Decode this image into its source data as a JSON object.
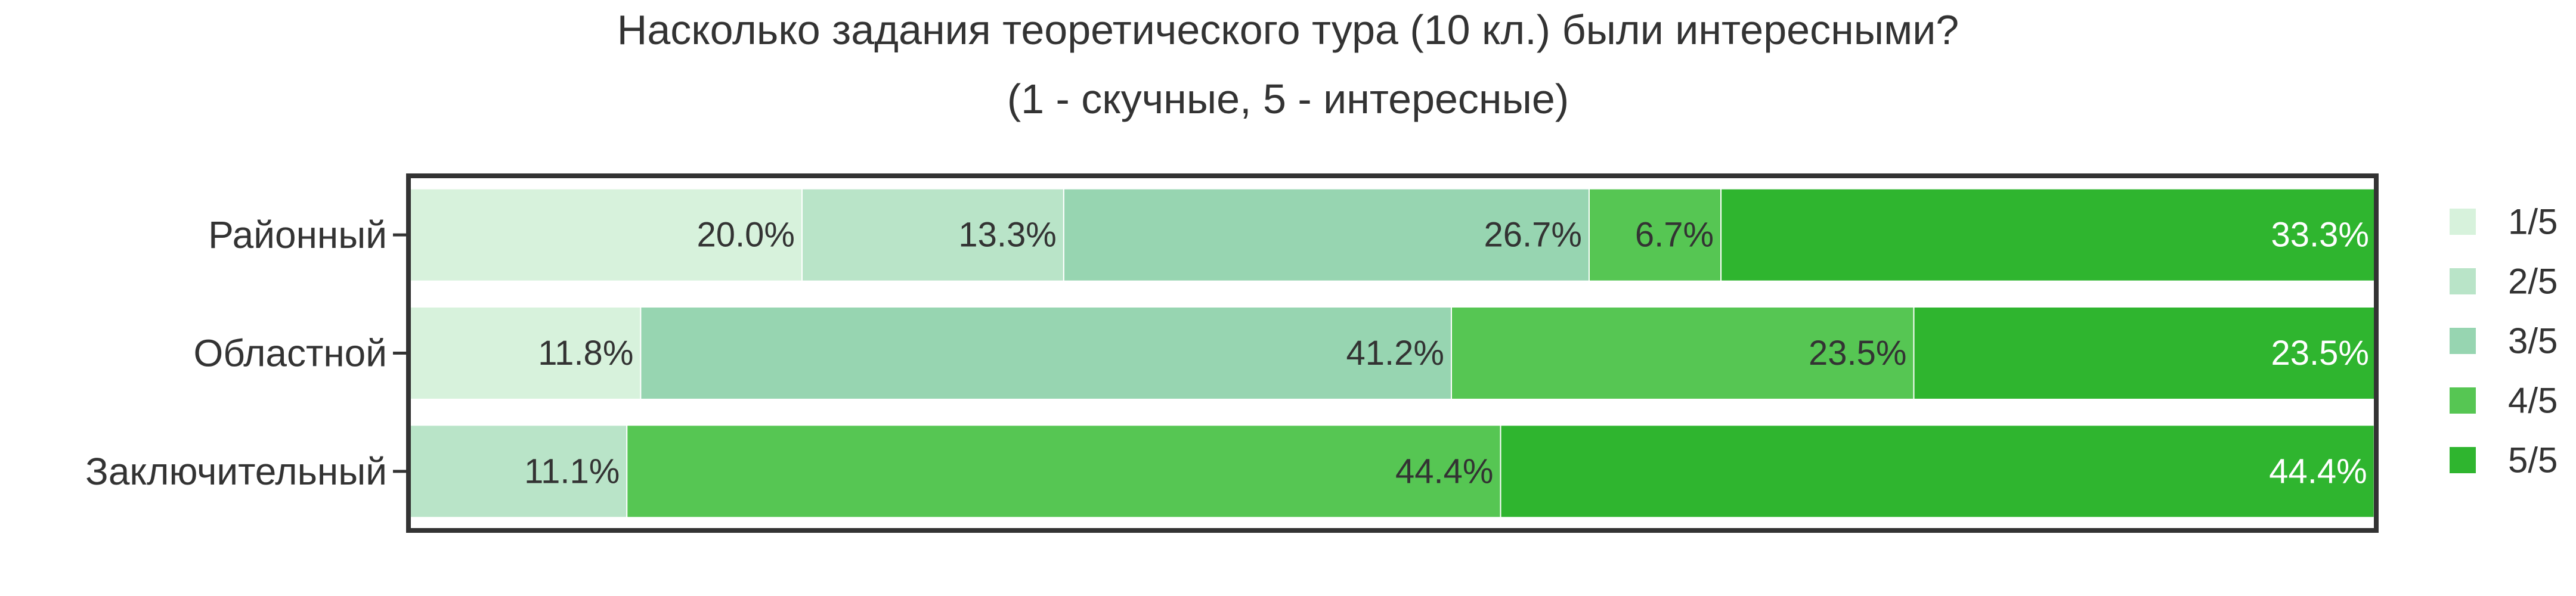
{
  "chart_data": {
    "type": "bar",
    "orientation": "horizontal",
    "stacked": true,
    "normalized": true,
    "title": "Насколько задания теоретического тура (10 кл.) были интересными?",
    "subtitle": "(1 - скучные, 5 - интересные)",
    "categories": [
      "Районный",
      "Областной",
      "Заключительный"
    ],
    "series": [
      {
        "name": "1/5",
        "color": "#d7f2dc",
        "values": [
          20.0,
          11.8,
          0.0
        ]
      },
      {
        "name": "2/5",
        "color": "#b9e4c8",
        "values": [
          13.3,
          0.0,
          11.1
        ]
      },
      {
        "name": "3/5",
        "color": "#97d5b1",
        "values": [
          26.7,
          41.2,
          0.0
        ]
      },
      {
        "name": "4/5",
        "color": "#56c653",
        "values": [
          6.7,
          23.5,
          44.4
        ]
      },
      {
        "name": "5/5",
        "color": "#2fb52f",
        "values": [
          33.3,
          23.5,
          44.4
        ]
      }
    ],
    "value_format": "{v}%",
    "xlim": [
      0,
      100
    ],
    "grid": false,
    "legend": "right"
  }
}
